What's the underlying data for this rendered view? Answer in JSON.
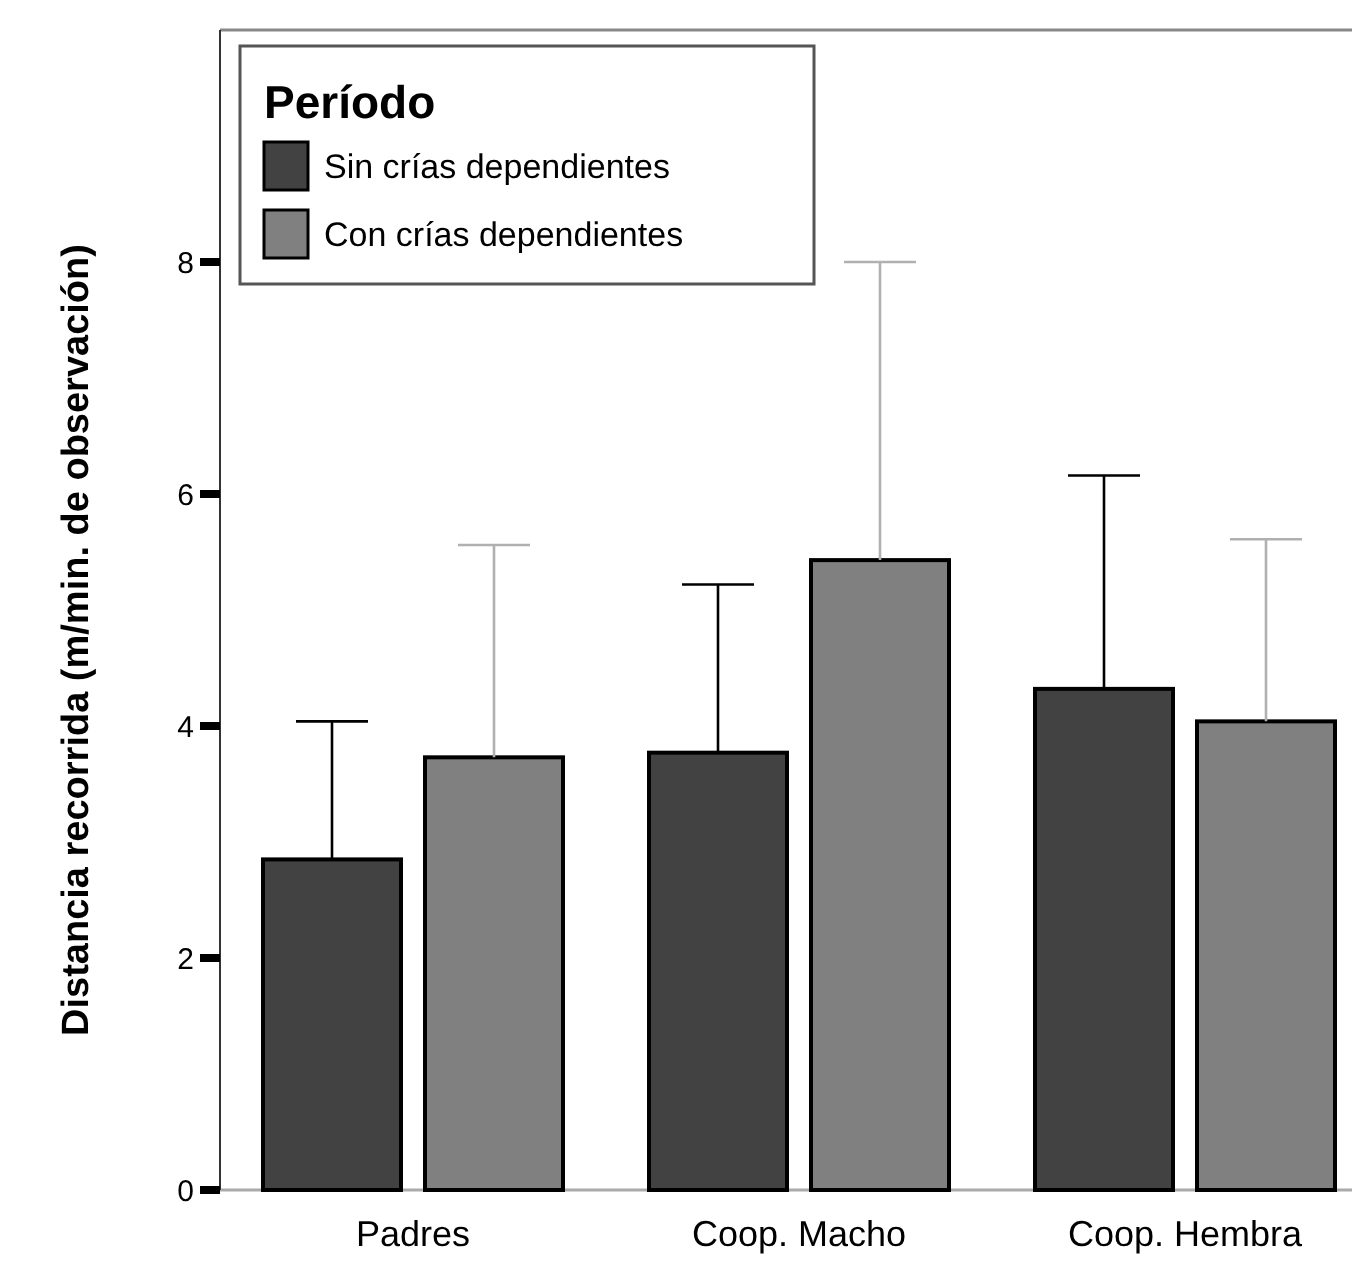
{
  "chart_data": {
    "type": "bar",
    "ylabel": "Distancia recorrida (m/min. de observación)",
    "legend_title": "Período",
    "categories": [
      "Padres",
      "Coop. Macho",
      "Coop. Hembra"
    ],
    "series": [
      {
        "name": "Sin crías dependientes",
        "color": "#424242",
        "values": [
          2.85,
          3.77,
          4.32
        ],
        "errors": [
          [
            2.85,
            4.04
          ],
          [
            3.77,
            5.22
          ],
          [
            4.32,
            6.16
          ]
        ]
      },
      {
        "name": "Con crías dependientes",
        "color": "#808080",
        "values": [
          3.73,
          5.43,
          4.04
        ],
        "errors": [
          [
            3.73,
            5.56
          ],
          [
            5.43,
            8.0
          ],
          [
            4.04,
            5.61
          ]
        ]
      }
    ],
    "ylim": [
      0,
      10
    ],
    "yticks": [
      0,
      2,
      4,
      6,
      8
    ],
    "grid": false,
    "legend": "top left"
  }
}
